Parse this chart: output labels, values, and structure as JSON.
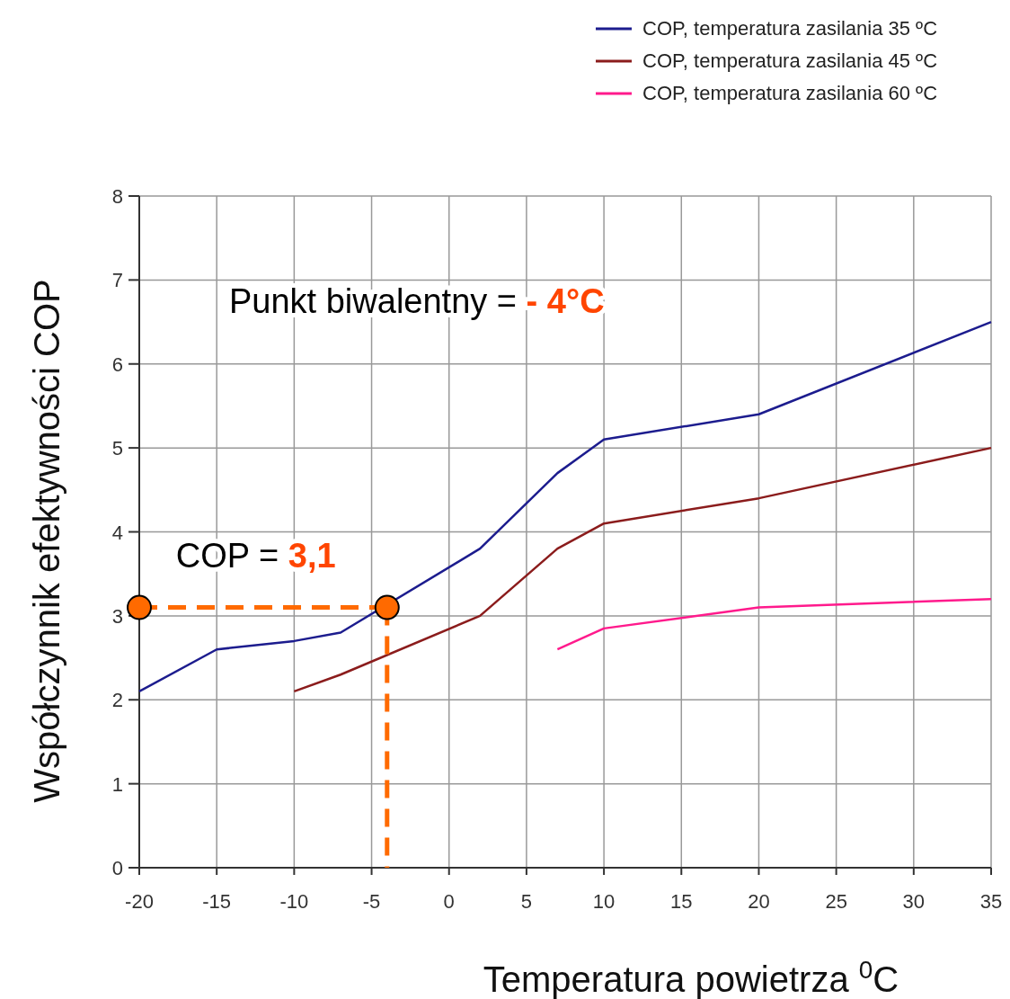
{
  "chart_data": {
    "type": "line",
    "xlabel": "Temperatura powietrza $^{0}$C",
    "ylabel": "Współczynnik efektywności COP",
    "xlim": [
      -20,
      35
    ],
    "xticks": [
      -20,
      -15,
      -10,
      -5,
      0,
      5,
      10,
      15,
      20,
      25,
      30,
      35
    ],
    "ylim": [
      0,
      8
    ],
    "yticks": [
      0,
      1,
      2,
      3,
      4,
      5,
      6,
      7,
      8
    ],
    "grid": true,
    "legend": "top right",
    "series": [
      {
        "name": "COP, temperatura zasilania 35 ºC",
        "color": "#1c1c8e",
        "x": [
          -20,
          -15,
          -10,
          -7,
          2,
          7,
          10,
          20,
          35
        ],
        "values": [
          2.1,
          2.6,
          2.7,
          2.8,
          3.8,
          4.7,
          5.1,
          5.4,
          6.5
        ]
      },
      {
        "name": "COP, temperatura zasilania 45 ºC",
        "color": "#8b1c1c",
        "x": [
          -10,
          -7,
          2,
          7,
          10,
          20,
          35
        ],
        "values": [
          2.1,
          2.3,
          3.0,
          3.8,
          4.1,
          4.4,
          5.0
        ]
      },
      {
        "name": "COP, temperatura zasilania 60 ºC",
        "color": "#ff1a8c",
        "x": [
          7,
          10,
          20,
          35
        ],
        "values": [
          2.6,
          2.85,
          3.1,
          3.2
        ]
      },
      {
        "type": "line",
        "color": "#ff6a00",
        "x": [
          -20,
          -4
        ],
        "values": [
          3.1,
          3.1
        ],
        "line_style": "dashed",
        "marker": "circle"
      },
      {
        "type": "line",
        "color": "#ff6a00",
        "x": [
          -4,
          -4
        ],
        "values": [
          3.1,
          0
        ],
        "line_style": "dashed",
        "marker": "none"
      }
    ],
    "annotations": [
      "Punkt biwalentny = - 4°C",
      {
        "text": "COP = 3,1",
        "x": -4,
        "y": 3.1
      }
    ]
  }
}
